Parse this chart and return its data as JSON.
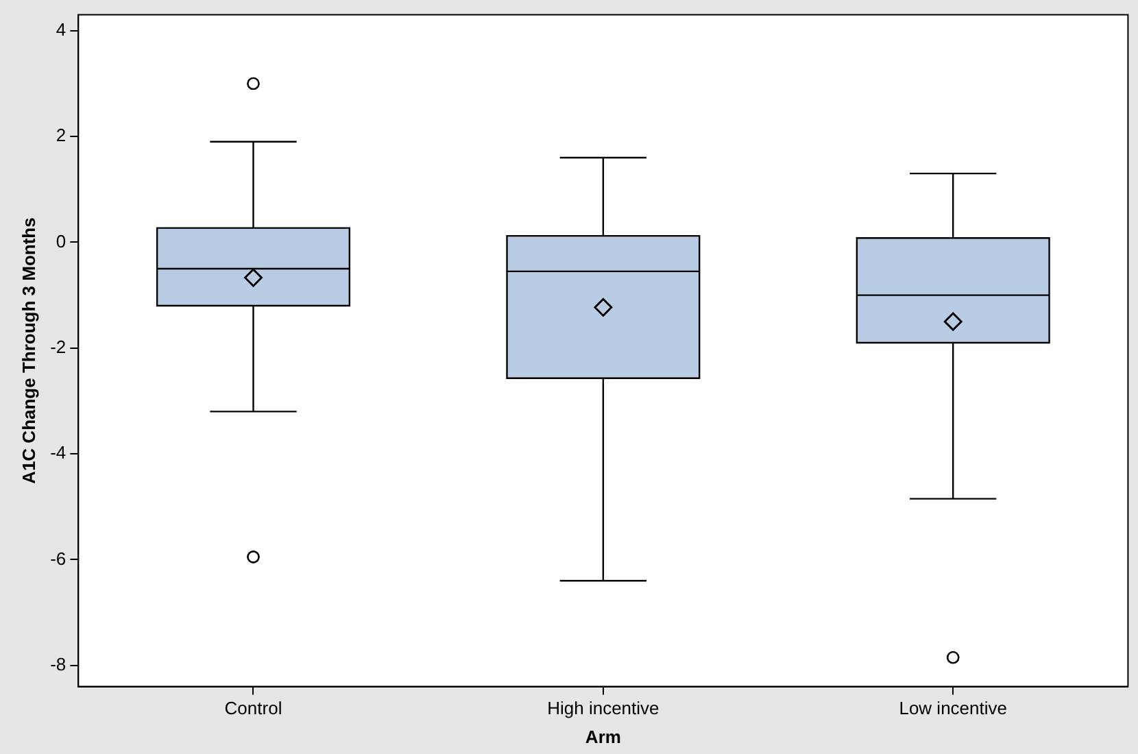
{
  "chart_data": {
    "type": "box",
    "xlabel": "Arm",
    "ylabel": "A1C Change Through 3 Months",
    "categories": [
      "Control",
      "High incentive",
      "Low incentive"
    ],
    "color": "#b8cce4",
    "grid": false,
    "legend": false,
    "marker": "diamond",
    "boxes": [
      {
        "low": -3.2,
        "q1": -1.2,
        "median": -0.5,
        "q3": 0.27,
        "high": 1.9,
        "mean": -0.67,
        "outliers": [
          3.0,
          -5.95
        ]
      },
      {
        "low": -6.4,
        "q1": -2.57,
        "median": -0.55,
        "q3": 0.12,
        "high": 1.6,
        "mean": -1.23
      },
      {
        "low": -4.85,
        "q1": -1.9,
        "median": -1.0,
        "q3": 0.08,
        "high": 1.3,
        "mean": -1.5,
        "outliers": [
          -7.85
        ]
      }
    ],
    "ylim": [
      -8.4,
      4.3
    ],
    "yticks": [
      -8,
      -6,
      -4,
      -2,
      0,
      2,
      4
    ]
  }
}
